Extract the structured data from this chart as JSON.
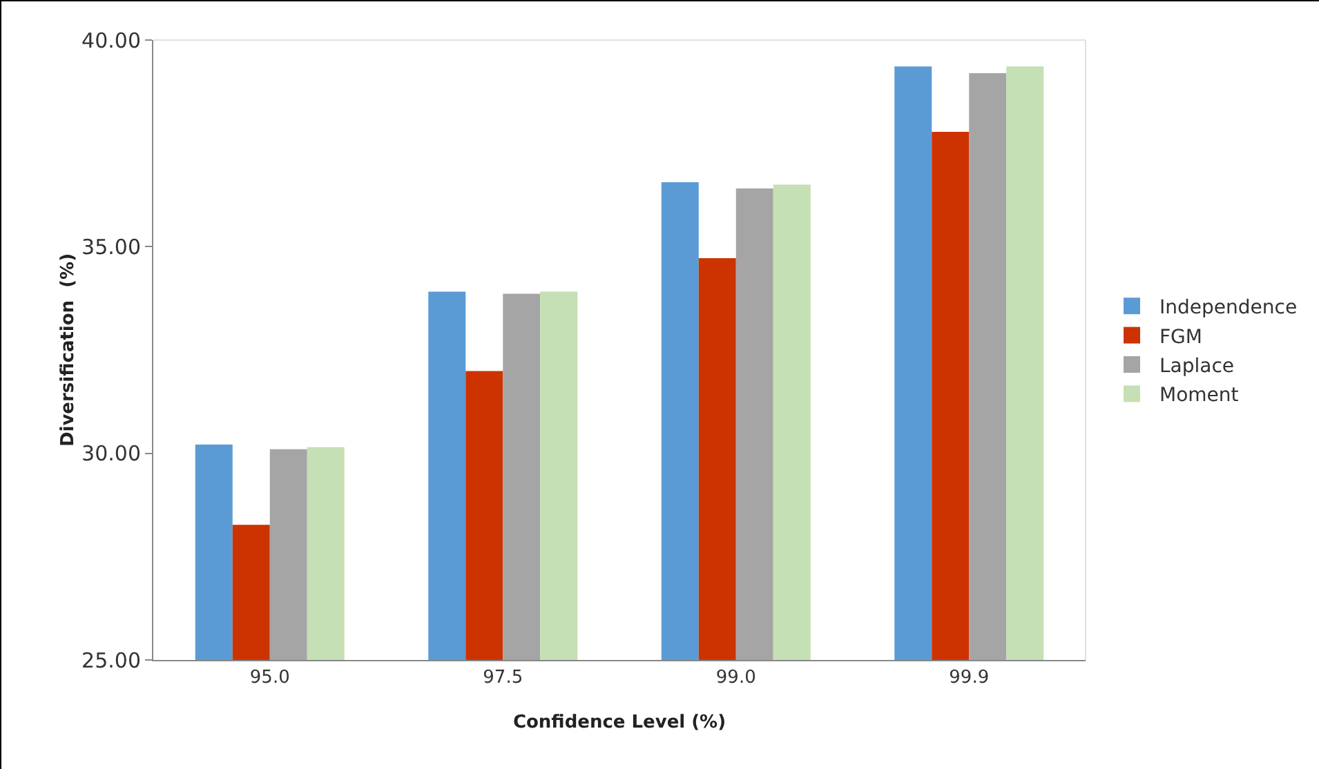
{
  "chart_data": {
    "type": "bar",
    "xlabel": "Confidence Level (%)",
    "ylabel": "Diversification  (%)",
    "categories": [
      "95.0",
      "97.5",
      "99.0",
      "99.9"
    ],
    "series": [
      {
        "name": "Independence",
        "color": "#5b9bd5",
        "values": [
          30.21,
          33.91,
          36.56,
          39.36
        ]
      },
      {
        "name": "FGM",
        "color": "#cc3300",
        "values": [
          28.27,
          31.99,
          34.72,
          37.78
        ]
      },
      {
        "name": "Laplace",
        "color": "#a5a5a5",
        "values": [
          30.1,
          33.86,
          36.41,
          39.2
        ]
      },
      {
        "name": "Moment",
        "color": "#c5e0b4",
        "values": [
          30.15,
          33.91,
          36.5,
          39.36
        ]
      }
    ],
    "ylim": [
      25,
      40
    ],
    "yticks": [
      {
        "value": 25,
        "label": "25.00"
      },
      {
        "value": 30,
        "label": "30.00"
      },
      {
        "value": 35,
        "label": "35.00"
      },
      {
        "value": 40,
        "label": "40.00"
      }
    ],
    "grid": false,
    "legend": "right"
  }
}
